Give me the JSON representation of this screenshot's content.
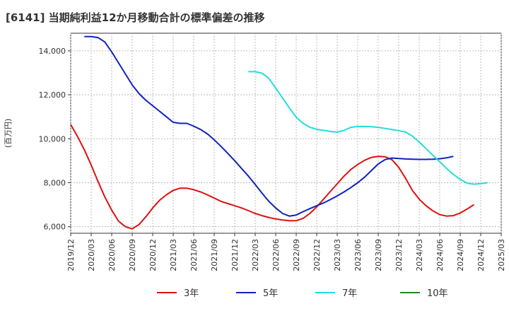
{
  "chart_data": {
    "type": "line",
    "title": "[6141]  当期純利益12か月移動合計の標準偏差の推移",
    "ylabel": "(百万円)",
    "xlabel": "",
    "ylim": [
      5700,
      14800
    ],
    "y_ticks": [
      6000,
      8000,
      10000,
      12000,
      14000
    ],
    "y_tick_labels": [
      "6,000",
      "8,000",
      "10,000",
      "12,000",
      "14,000"
    ],
    "x_range": [
      "2019-12",
      "2025-03"
    ],
    "x_tick_labels": [
      "2019/12",
      "2020/03",
      "2020/06",
      "2020/09",
      "2020/12",
      "2021/03",
      "2021/06",
      "2021/09",
      "2021/12",
      "2022/03",
      "2022/06",
      "2022/09",
      "2022/12",
      "2023/03",
      "2023/06",
      "2023/09",
      "2023/12",
      "2024/03",
      "2024/06",
      "2024/09",
      "2024/12",
      "2025/03"
    ],
    "grid": true,
    "legend_position": "bottom",
    "series": [
      {
        "name": "3年",
        "color": "#dd1111",
        "start": "2019-12",
        "values": [
          10650,
          10100,
          9500,
          8800,
          8050,
          7350,
          6750,
          6250,
          6000,
          5900,
          6100,
          6450,
          6850,
          7200,
          7450,
          7650,
          7750,
          7750,
          7680,
          7580,
          7450,
          7300,
          7150,
          7050,
          6950,
          6850,
          6730,
          6600,
          6500,
          6420,
          6350,
          6300,
          6270,
          6270,
          6380,
          6600,
          6900,
          7250,
          7600,
          7950,
          8300,
          8600,
          8830,
          9020,
          9150,
          9200,
          9180,
          9050,
          8700,
          8200,
          7650,
          7250,
          6950,
          6720,
          6550,
          6480,
          6500,
          6620,
          6800,
          7000
        ]
      },
      {
        "name": "5年",
        "color": "#1122bb",
        "start": "2020-02",
        "values": [
          14650,
          14650,
          14600,
          14400,
          13950,
          13450,
          12950,
          12450,
          12050,
          11750,
          11500,
          11250,
          11000,
          10750,
          10700,
          10700,
          10570,
          10420,
          10220,
          9950,
          9650,
          9330,
          9000,
          8650,
          8300,
          7920,
          7520,
          7150,
          6850,
          6600,
          6480,
          6530,
          6680,
          6820,
          6950,
          7080,
          7230,
          7400,
          7580,
          7780,
          8000,
          8250,
          8550,
          8850,
          9050,
          9120,
          9100,
          9080,
          9070,
          9060,
          9060,
          9070,
          9090,
          9130,
          9200
        ]
      },
      {
        "name": "7年",
        "color": "#22dddd",
        "start": "2022-02",
        "values": [
          13050,
          13050,
          12980,
          12750,
          12300,
          11850,
          11400,
          10980,
          10700,
          10520,
          10430,
          10380,
          10330,
          10300,
          10380,
          10520,
          10560,
          10560,
          10550,
          10520,
          10470,
          10420,
          10370,
          10300,
          10120,
          9850,
          9550,
          9250,
          8950,
          8650,
          8380,
          8150,
          7980,
          7930,
          7960,
          8000
        ]
      },
      {
        "name": "10年",
        "color": "#228822",
        "start": "",
        "values": []
      }
    ]
  }
}
